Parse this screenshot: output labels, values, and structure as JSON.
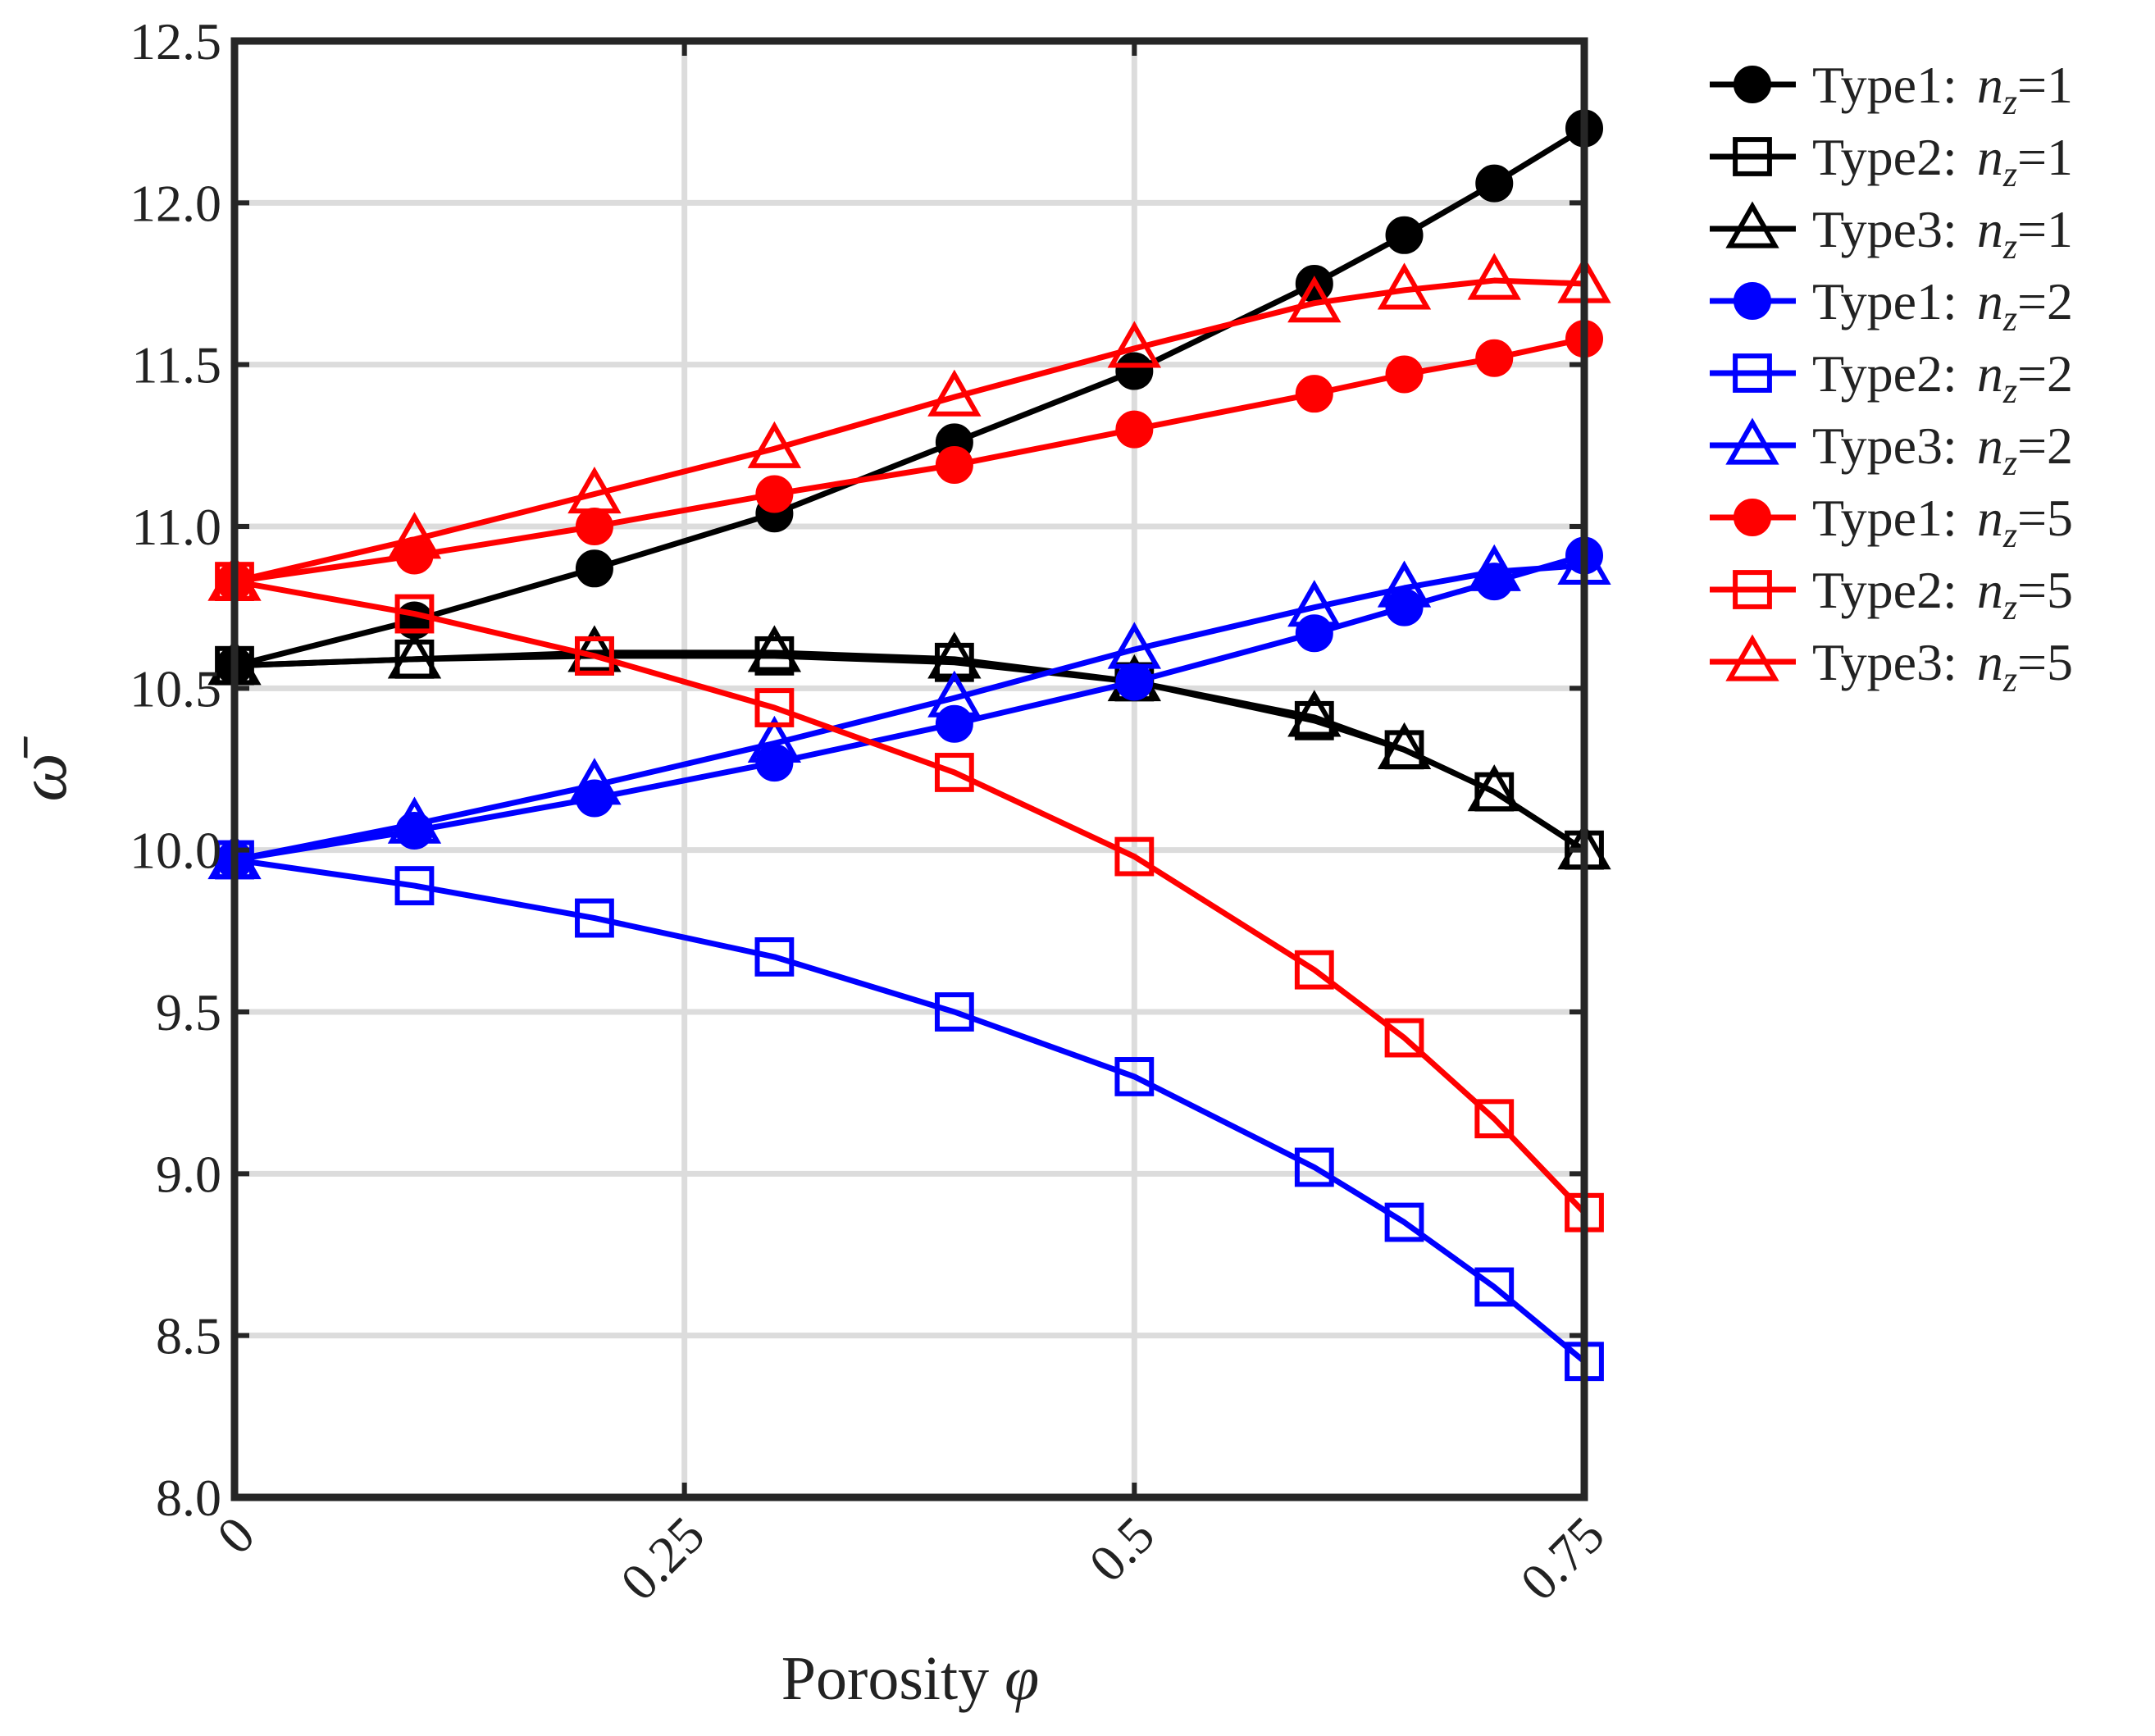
{
  "chart_data": {
    "type": "line",
    "title": "",
    "xlabel": "Porosity φ",
    "ylabel": "ω̄",
    "xlim": [
      0,
      0.75
    ],
    "ylim": [
      8.0,
      12.5
    ],
    "x_ticks": [
      0,
      0.25,
      0.5,
      0.75
    ],
    "x_tick_labels": [
      "0",
      "0.25",
      "0.5",
      "0.75"
    ],
    "y_ticks": [
      8.0,
      8.5,
      9.0,
      9.5,
      10.0,
      10.5,
      11.0,
      11.5,
      12.0,
      12.5
    ],
    "y_tick_labels": [
      "8.0",
      "8.5",
      "9.0",
      "9.5",
      "10.0",
      "10.5",
      "11.0",
      "11.5",
      "12.0",
      "12.5"
    ],
    "grid": true,
    "legend_position": "outside-right",
    "x": [
      0,
      0.1,
      0.2,
      0.3,
      0.4,
      0.5,
      0.6,
      0.65,
      0.7,
      0.75
    ],
    "series": [
      {
        "name": "Type1: n_z=1",
        "prefix": "Type1: ",
        "nz": "1",
        "color": "#000000",
        "marker": "circle-filled",
        "values": [
          10.57,
          10.71,
          10.87,
          11.04,
          11.26,
          11.48,
          11.75,
          11.9,
          12.06,
          12.23
        ]
      },
      {
        "name": "Type2: n_z=1",
        "prefix": "Type2: ",
        "nz": "1",
        "color": "#000000",
        "marker": "square-open",
        "values": [
          10.57,
          10.59,
          10.6,
          10.6,
          10.58,
          10.52,
          10.4,
          10.31,
          10.18,
          10.0
        ]
      },
      {
        "name": "Type3: n_z=1",
        "prefix": "Type3: ",
        "nz": "1",
        "color": "#000000",
        "marker": "triangle-open",
        "values": [
          10.57,
          10.59,
          10.61,
          10.61,
          10.59,
          10.52,
          10.41,
          10.31,
          10.18,
          10.0
        ]
      },
      {
        "name": "Type1: n_z=2",
        "prefix": "Type1: ",
        "nz": "2",
        "color": "#0000ff",
        "marker": "circle-filled",
        "values": [
          9.97,
          10.06,
          10.16,
          10.27,
          10.39,
          10.52,
          10.67,
          10.75,
          10.83,
          10.91
        ]
      },
      {
        "name": "Type2: n_z=2",
        "prefix": "Type2: ",
        "nz": "2",
        "color": "#0000ff",
        "marker": "square-open",
        "values": [
          9.97,
          9.89,
          9.79,
          9.67,
          9.5,
          9.3,
          9.02,
          8.85,
          8.65,
          8.42
        ]
      },
      {
        "name": "Type3: n_z=2",
        "prefix": "Type3: ",
        "nz": "2",
        "color": "#0000ff",
        "marker": "triangle-open",
        "values": [
          9.97,
          10.08,
          10.2,
          10.33,
          10.47,
          10.62,
          10.75,
          10.81,
          10.86,
          10.88
        ]
      },
      {
        "name": "Type1: n_z=5",
        "prefix": "Type1: ",
        "nz": "5",
        "color": "#ff0000",
        "marker": "circle-filled",
        "values": [
          10.83,
          10.91,
          11.0,
          11.1,
          11.19,
          11.3,
          11.41,
          11.47,
          11.52,
          11.58
        ]
      },
      {
        "name": "Type2: n_z=5",
        "prefix": "Type2: ",
        "nz": "5",
        "color": "#ff0000",
        "marker": "square-open",
        "values": [
          10.83,
          10.73,
          10.6,
          10.44,
          10.24,
          9.98,
          9.63,
          9.42,
          9.17,
          8.88
        ]
      },
      {
        "name": "Type3: n_z=5",
        "prefix": "Type3: ",
        "nz": "5",
        "color": "#ff0000",
        "marker": "triangle-open",
        "values": [
          10.83,
          10.96,
          11.1,
          11.24,
          11.4,
          11.55,
          11.69,
          11.73,
          11.76,
          11.75
        ]
      }
    ]
  }
}
